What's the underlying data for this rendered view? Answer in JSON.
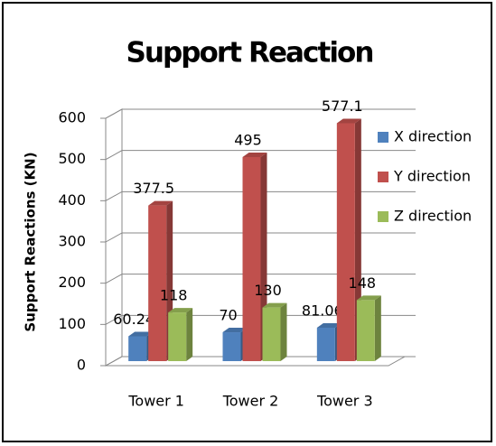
{
  "chart_data": {
    "type": "bar",
    "title": "Support Reaction",
    "y_label": "Support Reactions (KN)",
    "categories": [
      "Tower 1",
      "Tower 2",
      "Tower 3"
    ],
    "series": [
      {
        "name": "X direction",
        "color": "#4f81bd",
        "values": [
          60.24,
          70,
          81.06
        ]
      },
      {
        "name": "Y direction",
        "color": "#c0504d",
        "values": [
          377.5,
          495,
          577.1
        ]
      },
      {
        "name": "Z direction",
        "color": "#9bbb59",
        "values": [
          118,
          130,
          148
        ]
      }
    ],
    "ylim": [
      0,
      600
    ],
    "yticks": [
      0,
      100,
      200,
      300,
      400,
      500,
      600
    ],
    "grid": true,
    "legend": "right"
  }
}
